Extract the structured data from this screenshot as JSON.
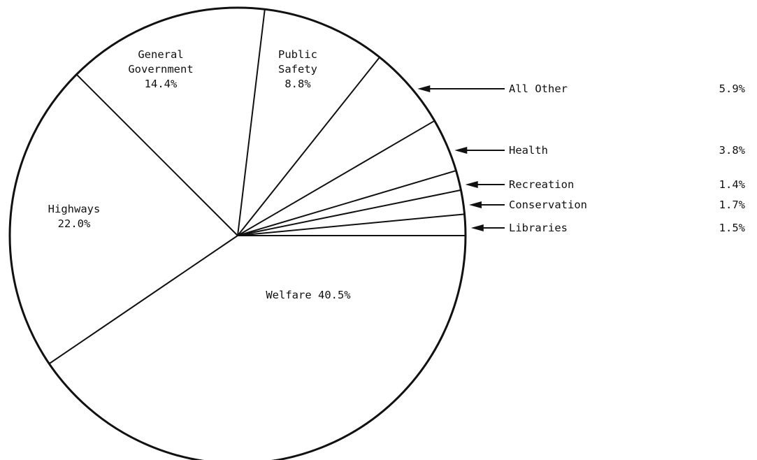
{
  "chart_data": {
    "type": "pie",
    "slices": [
      {
        "label_lines": [
          "Welfare 40.5%"
        ],
        "value": 40.5,
        "label_style": "inside"
      },
      {
        "label_lines": [
          "Highways",
          "22.0%"
        ],
        "value": 22.0,
        "label_style": "inside"
      },
      {
        "label_lines": [
          "General",
          "Government",
          "14.4%"
        ],
        "value": 14.4,
        "label_style": "inside"
      },
      {
        "label_lines": [
          "Public",
          "Safety",
          "8.8%"
        ],
        "value": 8.8,
        "label_style": "inside"
      },
      {
        "name": "All Other",
        "value": 5.9,
        "value_text": "5.9%",
        "label_style": "callout"
      },
      {
        "name": "Health",
        "value": 3.8,
        "value_text": "3.8%",
        "label_style": "callout"
      },
      {
        "name": "Recreation",
        "value": 1.4,
        "value_text": "1.4%",
        "label_style": "callout"
      },
      {
        "name": "Conservation",
        "value": 1.7,
        "value_text": "1.7%",
        "label_style": "callout"
      },
      {
        "name": "Libraries",
        "value": 1.5,
        "value_text": "1.5%",
        "label_style": "callout"
      }
    ]
  }
}
